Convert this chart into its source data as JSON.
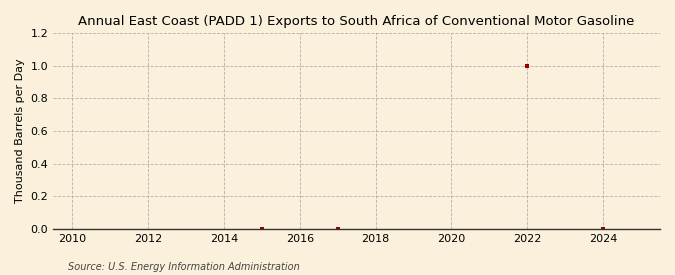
{
  "title": "Annual East Coast (PADD 1) Exports to South Africa of Conventional Motor Gasoline",
  "ylabel": "Thousand Barrels per Day",
  "source": "Source: U.S. Energy Information Administration",
  "background_color": "#faf0dc",
  "plot_background_color": "#faf0dc",
  "xlim": [
    2009.5,
    2025.5
  ],
  "ylim": [
    0.0,
    1.2
  ],
  "yticks": [
    0.0,
    0.2,
    0.4,
    0.6,
    0.8,
    1.0,
    1.2
  ],
  "xticks": [
    2010,
    2012,
    2014,
    2016,
    2018,
    2020,
    2022,
    2024
  ],
  "data_x": [
    2015,
    2017,
    2022,
    2024
  ],
  "data_y": [
    0.0,
    0.0,
    1.0,
    0.0
  ],
  "marker_color": "#990000",
  "marker_style": "s",
  "marker_size": 3.5,
  "title_fontsize": 9.5,
  "label_fontsize": 8,
  "tick_fontsize": 8,
  "source_fontsize": 7
}
